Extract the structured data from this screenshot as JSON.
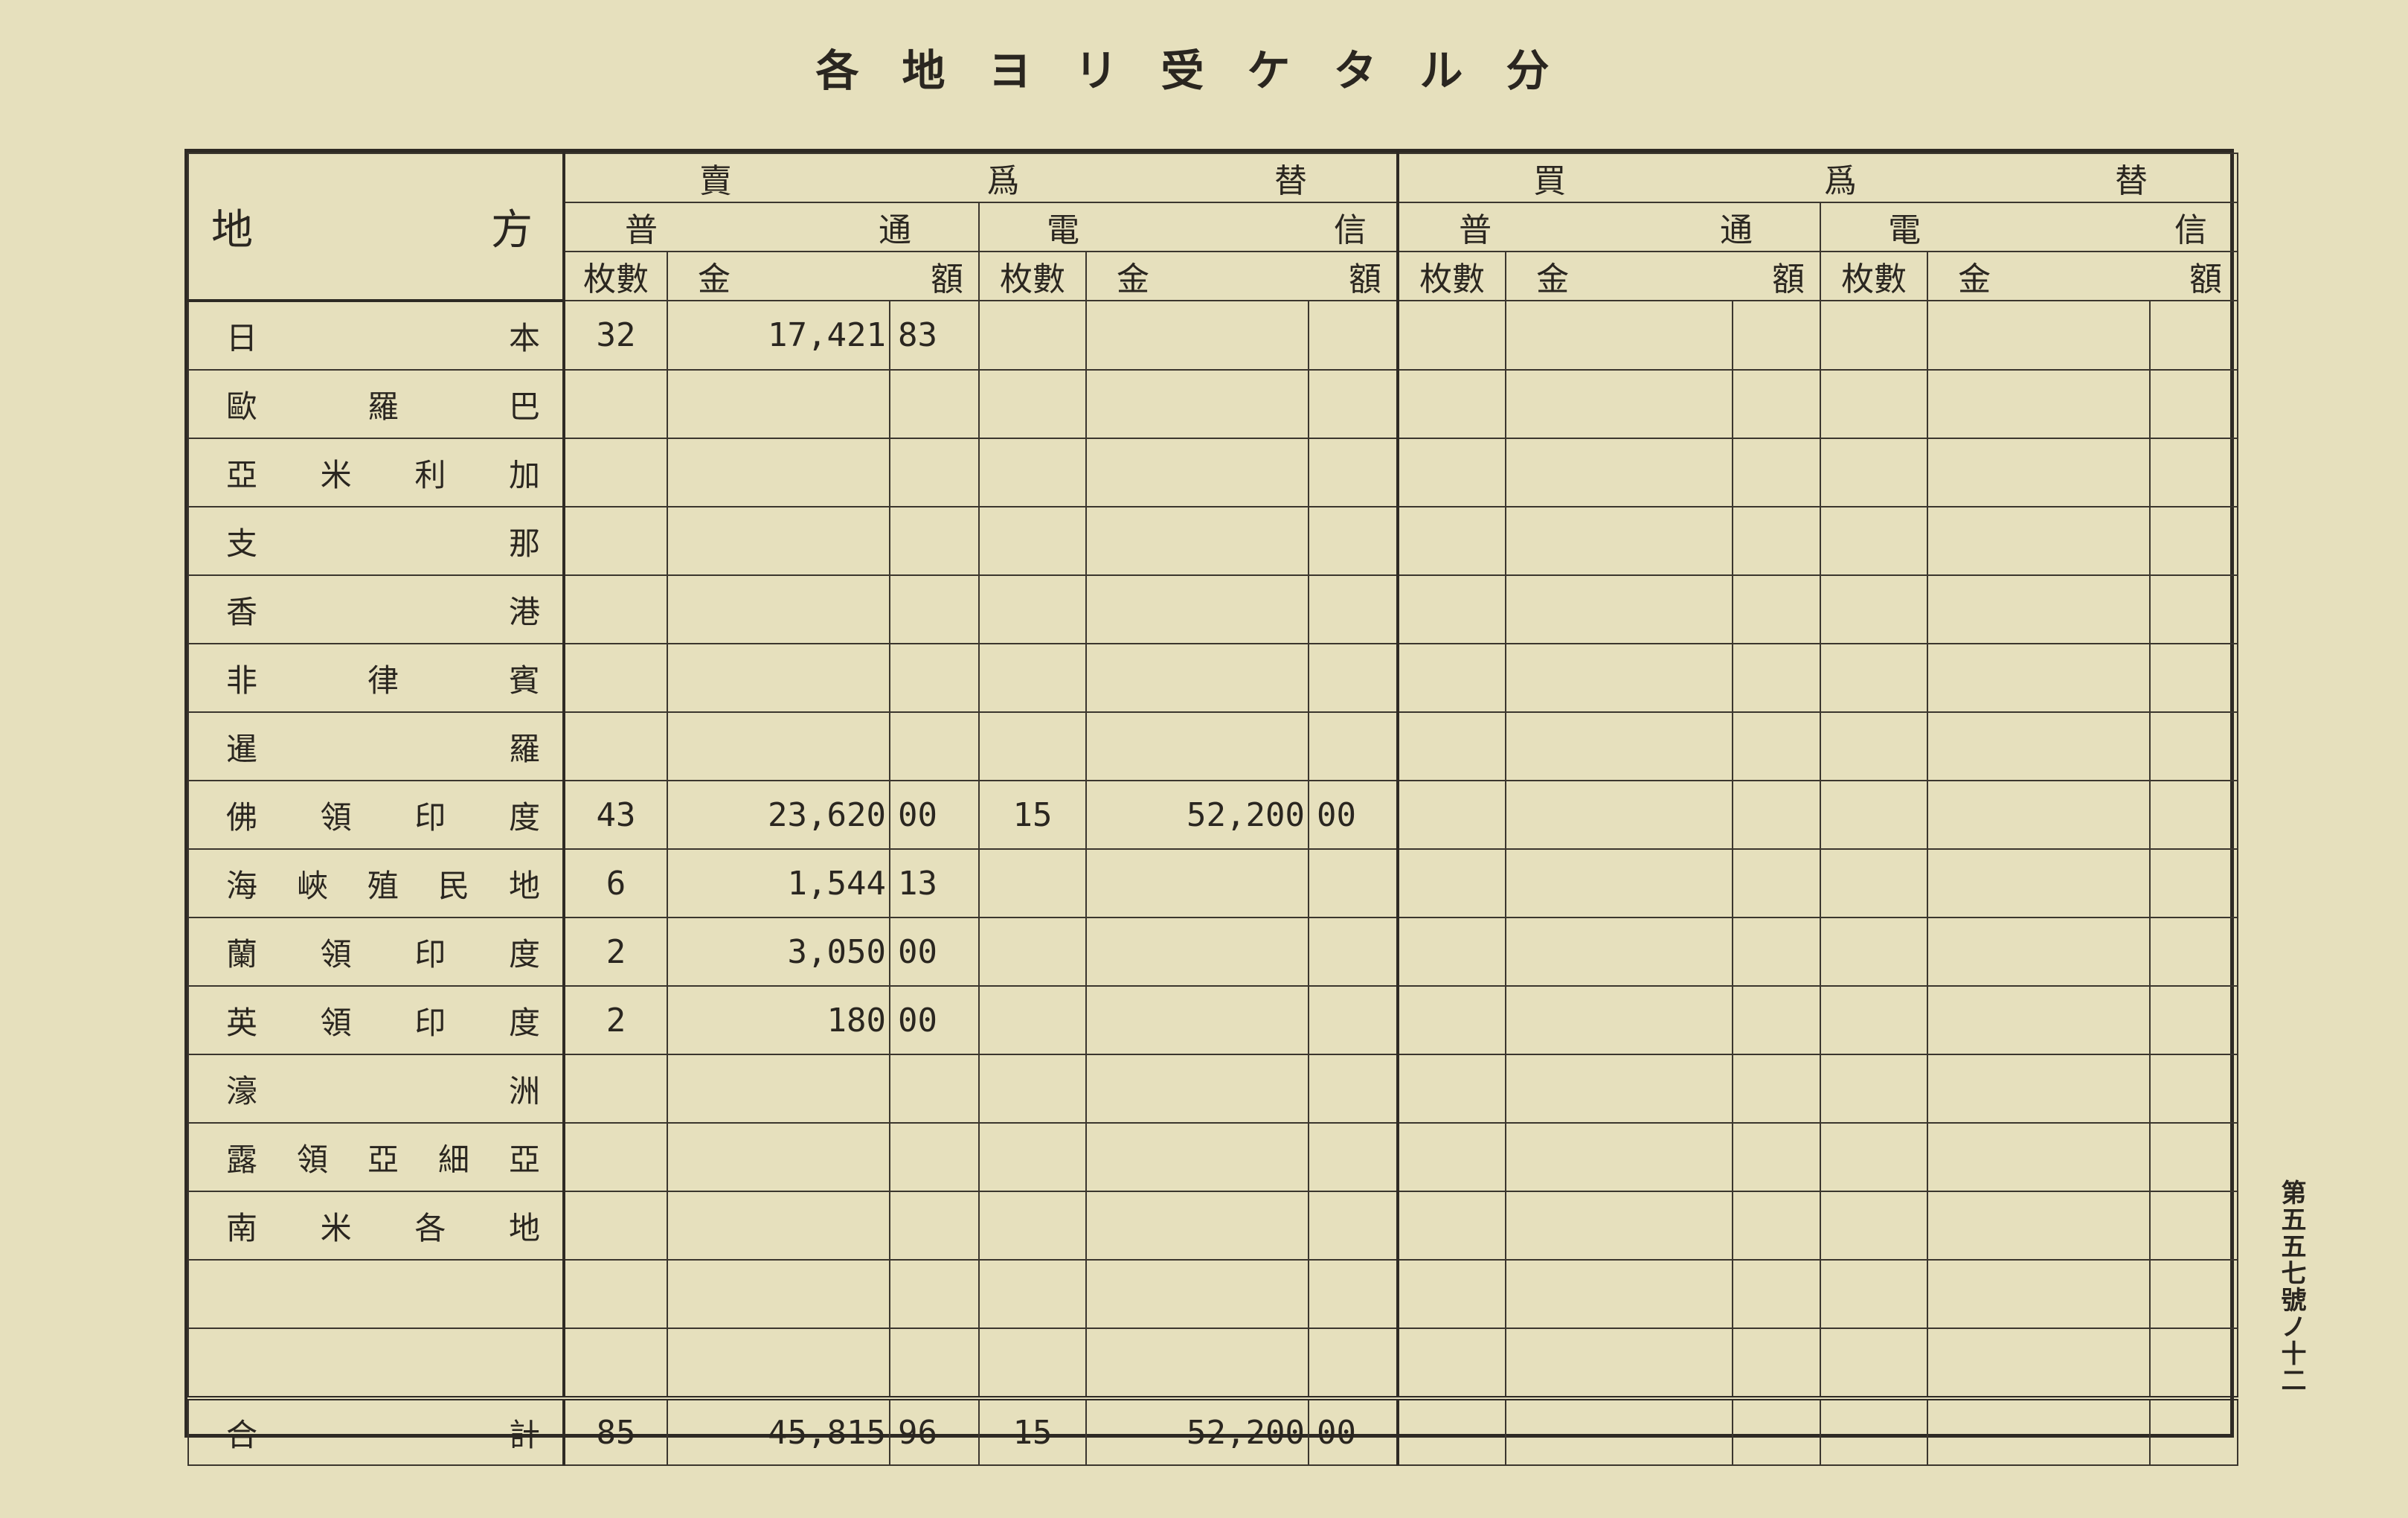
{
  "title": "各地ヨリ受ケタル分",
  "side_note": "第五五七號ノ十二",
  "header": {
    "place": "地方",
    "sell": "賣爲替",
    "buy": "買爲替",
    "regular": "普通",
    "telegraphic": "電信",
    "count": "枚數",
    "amount": "金額"
  },
  "rows": [
    {
      "place": "日本",
      "sell_reg_count": "32",
      "sell_reg_yen": "17,421",
      "sell_reg_sen": "83",
      "sell_tel_count": "",
      "sell_tel_yen": "",
      "sell_tel_sen": ""
    },
    {
      "place": "歐羅巴"
    },
    {
      "place": "亞米利加"
    },
    {
      "place": "支那"
    },
    {
      "place": "香港"
    },
    {
      "place": "非律賓"
    },
    {
      "place": "暹羅"
    },
    {
      "place": "佛領印度",
      "sell_reg_count": "43",
      "sell_reg_yen": "23,620",
      "sell_reg_sen": "00",
      "sell_tel_count": "15",
      "sell_tel_yen": "52,200",
      "sell_tel_sen": "00"
    },
    {
      "place": "海峽殖民地",
      "sell_reg_count": "6",
      "sell_reg_yen": "1,544",
      "sell_reg_sen": "13"
    },
    {
      "place": "蘭領印度",
      "sell_reg_count": "2",
      "sell_reg_yen": "3,050",
      "sell_reg_sen": "00"
    },
    {
      "place": "英領印度",
      "sell_reg_count": "2",
      "sell_reg_yen": "180",
      "sell_reg_sen": "00"
    },
    {
      "place": "濠洲"
    },
    {
      "place": "露領亞細亞"
    },
    {
      "place": "南米各地"
    },
    {
      "place": ""
    },
    {
      "place": ""
    }
  ],
  "total": {
    "place": "合計",
    "sell_reg_count": "85",
    "sell_reg_yen": "45,815",
    "sell_reg_sen": "96",
    "sell_tel_count": "15",
    "sell_tel_yen": "52,200",
    "sell_tel_sen": "00"
  }
}
